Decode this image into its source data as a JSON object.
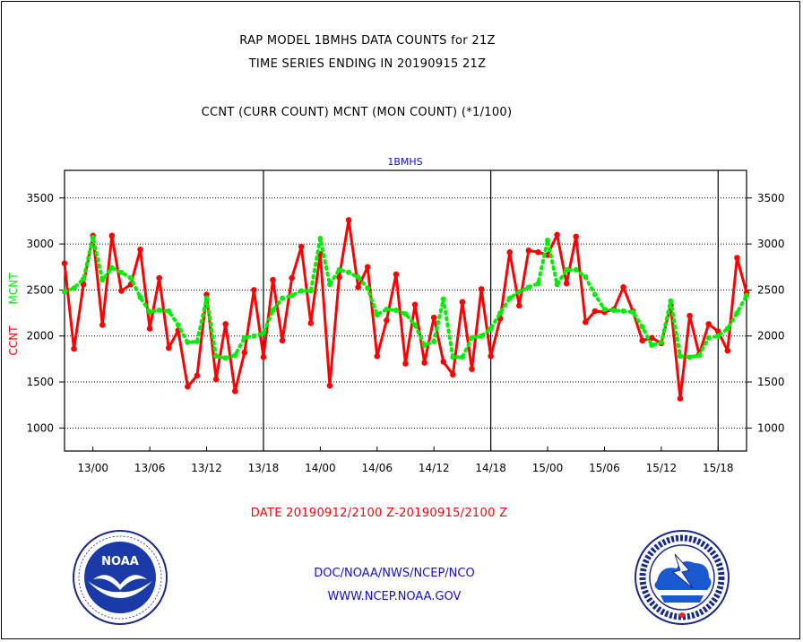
{
  "titles": {
    "line1": "RAP MODEL 1BMHS DATA COUNTS for 21Z",
    "line2": "TIME SERIES ENDING IN 20190915 21Z",
    "line3": "CCNT (CURR COUNT) MCNT (MON COUNT) (*1/100)"
  },
  "date_range": "DATE 20190912/2100 Z-20190915/2100 Z",
  "credits": {
    "line1": "DOC/NOAA/NWS/NCEP/NCO",
    "line2": "WWW.NCEP.NOAA.GOV"
  },
  "logos": {
    "left": "noaa-logo",
    "left_text": "NOAA",
    "right": "nws-logo"
  },
  "colors": {
    "ccnt": "#ff0000",
    "mcnt": "#00ee00",
    "panel_title": "#1010d0",
    "grid": "#000000"
  },
  "chart_data": {
    "type": "line",
    "title": "1BMHS",
    "ylabel_left": {
      "ccnt": "CCNT",
      "mcnt": "MCNT"
    },
    "ylim": [
      750,
      3800
    ],
    "yticks": [
      1000,
      1500,
      2000,
      2500,
      3000,
      3500
    ],
    "ytick_labels": [
      "1000",
      "1500",
      "2000",
      "2500",
      "3000",
      "3500"
    ],
    "xticks": [
      {
        "label": "13/00",
        "hour": 3
      },
      {
        "label": "13/06",
        "hour": 9
      },
      {
        "label": "13/12",
        "hour": 15
      },
      {
        "label": "13/18",
        "hour": 21
      },
      {
        "label": "14/00",
        "hour": 27
      },
      {
        "label": "14/06",
        "hour": 33
      },
      {
        "label": "14/12",
        "hour": 39
      },
      {
        "label": "14/18",
        "hour": 45
      },
      {
        "label": "15/00",
        "hour": 51
      },
      {
        "label": "15/06",
        "hour": 57
      },
      {
        "label": "15/12",
        "hour": 63
      },
      {
        "label": "15/18",
        "hour": 69
      }
    ],
    "xlim": [
      0,
      72
    ],
    "day_boundaries": [
      21,
      45,
      69
    ],
    "grid": true,
    "legend": "left-axis-label",
    "series": [
      {
        "name": "CCNT",
        "style": "solid",
        "values": [
          2790,
          1860,
          2560,
          3090,
          2120,
          3090,
          2490,
          2560,
          2940,
          2080,
          2630,
          1870,
          2060,
          1450,
          1570,
          2450,
          1530,
          2130,
          1400,
          1820,
          2500,
          1770,
          2610,
          1950,
          2630,
          2970,
          2140,
          2890,
          1460,
          2640,
          3260,
          2530,
          2750,
          1780,
          2170,
          2670,
          1700,
          2340,
          1710,
          2200,
          1720,
          1580,
          2370,
          1640,
          2510,
          1780,
          2190,
          2910,
          2330,
          2930,
          2910,
          2880,
          3100,
          2570,
          3080,
          2150,
          2270,
          2260,
          2290,
          2530,
          2270,
          1950,
          1980,
          1920,
          2330,
          1320,
          2220,
          1800,
          2130,
          2050,
          1840,
          2850,
          2470
        ]
      },
      {
        "name": "MCNT",
        "style": "dotted",
        "values": [
          2480,
          2520,
          2620,
          3070,
          2610,
          2740,
          2690,
          2630,
          2420,
          2260,
          2280,
          2270,
          2120,
          1930,
          1940,
          2410,
          1780,
          1760,
          1790,
          1980,
          2000,
          2030,
          2280,
          2410,
          2440,
          2490,
          2490,
          3060,
          2560,
          2720,
          2690,
          2640,
          2520,
          2230,
          2290,
          2280,
          2240,
          2120,
          1900,
          1940,
          2400,
          1770,
          1770,
          1980,
          2000,
          2080,
          2250,
          2410,
          2480,
          2530,
          2570,
          3040,
          2560,
          2720,
          2720,
          2640,
          2450,
          2290,
          2280,
          2270,
          2260,
          2100,
          1900,
          1930,
          2380,
          1780,
          1770,
          1790,
          1980,
          2000,
          2080,
          2250,
          2440
        ]
      }
    ]
  }
}
